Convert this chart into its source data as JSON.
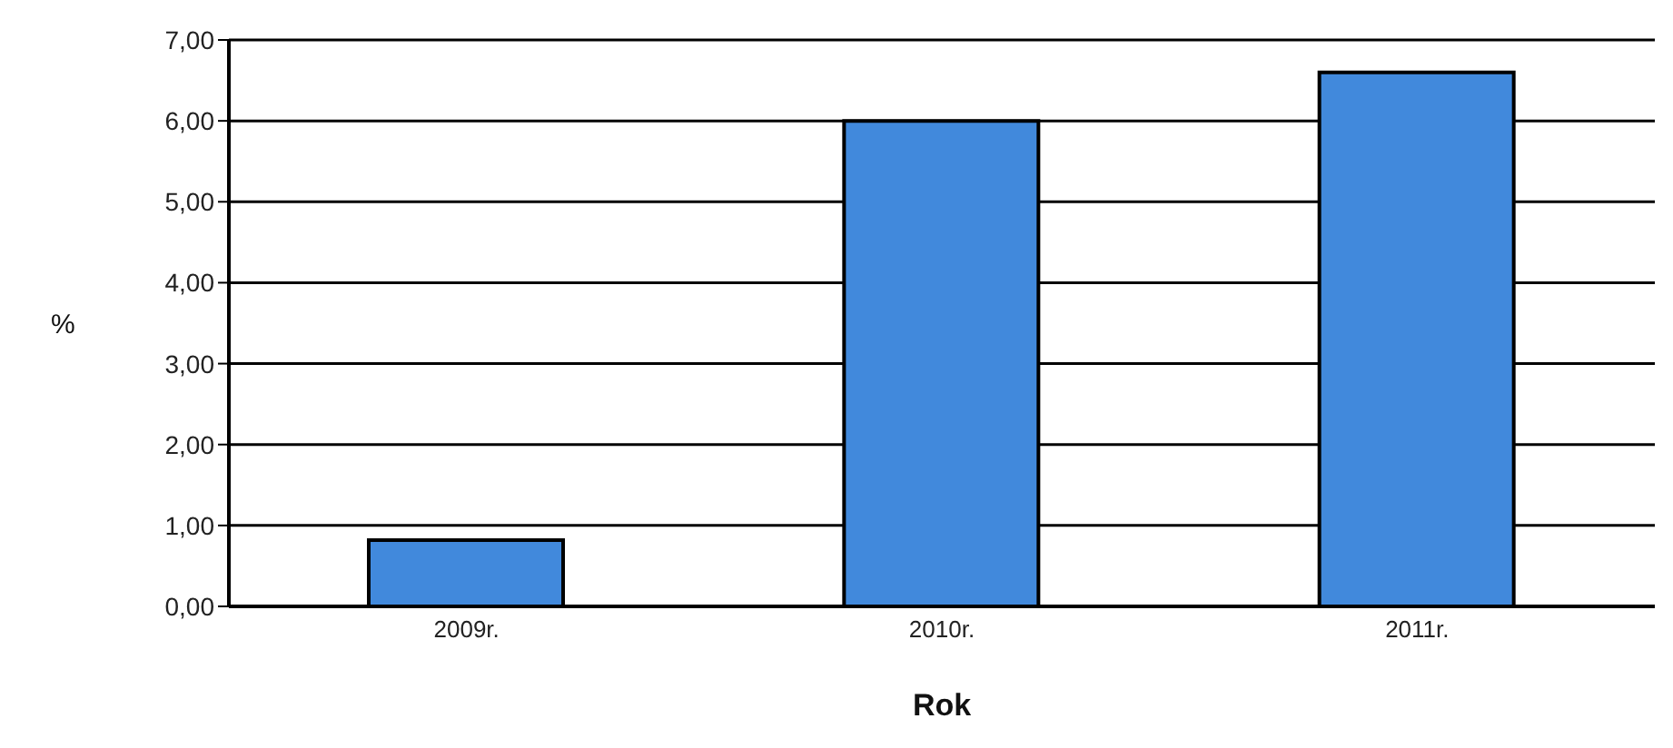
{
  "chart_data": {
    "type": "bar",
    "xlabel": "Rok",
    "ylabel": "%",
    "categories": [
      "2009r.",
      "2010r.",
      "2011r."
    ],
    "values": [
      0.82,
      6.0,
      6.6
    ],
    "color": "#4189dc",
    "ylim": [
      0,
      7
    ],
    "yticks": [
      {
        "value": 0,
        "label": "0,00"
      },
      {
        "value": 1,
        "label": "1,00"
      },
      {
        "value": 2,
        "label": "2,00"
      },
      {
        "value": 3,
        "label": "3,00"
      },
      {
        "value": 4,
        "label": "4,00"
      },
      {
        "value": 5,
        "label": "5,00"
      },
      {
        "value": 6,
        "label": "6,00"
      },
      {
        "value": 7,
        "label": "7,00"
      }
    ],
    "grid": "y"
  }
}
